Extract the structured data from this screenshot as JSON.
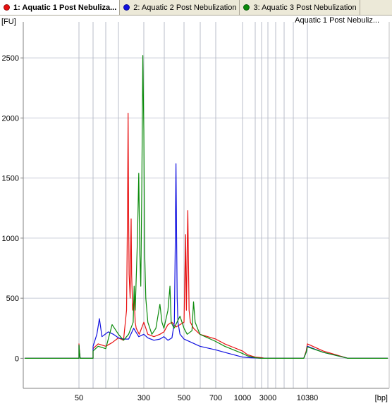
{
  "tabs": [
    {
      "label": "1: Aquatic 1 Post Nebuliza...",
      "color": "#e81010",
      "active": true
    },
    {
      "label": "2: Aquatic 2 Post Nebulization",
      "color": "#1010e0",
      "active": false
    },
    {
      "label": "3: Aquatic 3 Post Nebulization",
      "color": "#0a8a0a",
      "active": false
    }
  ],
  "chart_data": {
    "type": "line",
    "title": "",
    "sample_caption": "Aquatic 1 Post Nebuliz...",
    "ylabel": "[FU]",
    "xlabel": "[bp]",
    "ylim": [
      -250,
      2800
    ],
    "grid": true,
    "y_ticks": [
      0,
      500,
      1000,
      1500,
      2000,
      2500
    ],
    "x_tick_labels": [
      "50",
      "300",
      "500",
      "700",
      "1000",
      "3000",
      "10380"
    ],
    "ladder_bp": [
      35,
      50,
      100,
      150,
      200,
      300,
      400,
      500,
      600,
      700,
      1000,
      1500,
      2000,
      3000,
      4000,
      5000,
      7000,
      10380
    ],
    "series": [
      {
        "name": "1: Aquatic 1 Post Nebulization",
        "color": "#e81010",
        "points": [
          [
            20,
            0
          ],
          [
            47,
            0
          ],
          [
            49,
            70
          ],
          [
            50,
            120
          ],
          [
            51,
            70
          ],
          [
            53,
            0
          ],
          [
            85,
            0
          ],
          [
            100,
            80
          ],
          [
            120,
            120
          ],
          [
            150,
            100
          ],
          [
            175,
            130
          ],
          [
            200,
            170
          ],
          [
            220,
            150
          ],
          [
            232,
            400
          ],
          [
            236,
            1300
          ],
          [
            238,
            2040
          ],
          [
            240,
            1200
          ],
          [
            242,
            700
          ],
          [
            246,
            500
          ],
          [
            248,
            900
          ],
          [
            250,
            1160
          ],
          [
            252,
            700
          ],
          [
            256,
            400
          ],
          [
            262,
            500
          ],
          [
            266,
            300
          ],
          [
            270,
            250
          ],
          [
            282,
            200
          ],
          [
            300,
            300
          ],
          [
            320,
            200
          ],
          [
            350,
            180
          ],
          [
            380,
            200
          ],
          [
            400,
            220
          ],
          [
            420,
            280
          ],
          [
            440,
            300
          ],
          [
            460,
            260
          ],
          [
            480,
            280
          ],
          [
            500,
            300
          ],
          [
            505,
            650
          ],
          [
            510,
            1030
          ],
          [
            512,
            700
          ],
          [
            515,
            400
          ],
          [
            520,
            900
          ],
          [
            524,
            1230
          ],
          [
            528,
            800
          ],
          [
            532,
            400
          ],
          [
            540,
            300
          ],
          [
            560,
            250
          ],
          [
            600,
            200
          ],
          [
            700,
            160
          ],
          [
            800,
            120
          ],
          [
            900,
            90
          ],
          [
            1000,
            60
          ],
          [
            1200,
            30
          ],
          [
            1500,
            10
          ],
          [
            2000,
            5
          ],
          [
            2500,
            0
          ],
          [
            9500,
            0
          ],
          [
            10100,
            60
          ],
          [
            10380,
            120
          ],
          [
            10700,
            60
          ],
          [
            11200,
            0
          ],
          [
            12000,
            0
          ]
        ]
      },
      {
        "name": "2: Aquatic 2 Post Nebulization",
        "color": "#1010e0",
        "points": [
          [
            20,
            0
          ],
          [
            47,
            0
          ],
          [
            49,
            60
          ],
          [
            50,
            110
          ],
          [
            51,
            60
          ],
          [
            53,
            0
          ],
          [
            85,
            0
          ],
          [
            100,
            100
          ],
          [
            115,
            200
          ],
          [
            125,
            330
          ],
          [
            135,
            180
          ],
          [
            160,
            220
          ],
          [
            180,
            200
          ],
          [
            200,
            170
          ],
          [
            220,
            160
          ],
          [
            240,
            160
          ],
          [
            260,
            250
          ],
          [
            280,
            180
          ],
          [
            300,
            200
          ],
          [
            320,
            170
          ],
          [
            350,
            150
          ],
          [
            380,
            160
          ],
          [
            400,
            180
          ],
          [
            420,
            150
          ],
          [
            440,
            170
          ],
          [
            452,
            300
          ],
          [
            456,
            900
          ],
          [
            460,
            1620
          ],
          [
            463,
            1000
          ],
          [
            466,
            500
          ],
          [
            470,
            300
          ],
          [
            480,
            200
          ],
          [
            500,
            160
          ],
          [
            550,
            130
          ],
          [
            600,
            100
          ],
          [
            700,
            70
          ],
          [
            800,
            50
          ],
          [
            900,
            30
          ],
          [
            1000,
            10
          ],
          [
            1300,
            5
          ],
          [
            2000,
            0
          ],
          [
            9500,
            0
          ],
          [
            10100,
            50
          ],
          [
            10380,
            100
          ],
          [
            10700,
            50
          ],
          [
            11200,
            0
          ],
          [
            12000,
            0
          ]
        ]
      },
      {
        "name": "3: Aquatic 3 Post Nebulization",
        "color": "#0a8a0a",
        "points": [
          [
            20,
            0
          ],
          [
            47,
            0
          ],
          [
            49,
            60
          ],
          [
            50,
            110
          ],
          [
            51,
            60
          ],
          [
            53,
            0
          ],
          [
            85,
            0
          ],
          [
            100,
            60
          ],
          [
            120,
            100
          ],
          [
            150,
            80
          ],
          [
            175,
            280
          ],
          [
            200,
            200
          ],
          [
            220,
            150
          ],
          [
            240,
            200
          ],
          [
            258,
            300
          ],
          [
            262,
            600
          ],
          [
            266,
            400
          ],
          [
            275,
            1000
          ],
          [
            280,
            1540
          ],
          [
            284,
            900
          ],
          [
            288,
            600
          ],
          [
            292,
            1400
          ],
          [
            296,
            2520
          ],
          [
            300,
            1900
          ],
          [
            304,
            900
          ],
          [
            310,
            500
          ],
          [
            320,
            300
          ],
          [
            340,
            200
          ],
          [
            360,
            250
          ],
          [
            380,
            450
          ],
          [
            390,
            300
          ],
          [
            400,
            250
          ],
          [
            420,
            400
          ],
          [
            430,
            600
          ],
          [
            436,
            300
          ],
          [
            450,
            250
          ],
          [
            480,
            350
          ],
          [
            500,
            250
          ],
          [
            520,
            200
          ],
          [
            550,
            230
          ],
          [
            560,
            470
          ],
          [
            570,
            300
          ],
          [
            600,
            200
          ],
          [
            700,
            140
          ],
          [
            800,
            100
          ],
          [
            900,
            70
          ],
          [
            1000,
            40
          ],
          [
            1200,
            20
          ],
          [
            1500,
            5
          ],
          [
            2000,
            0
          ],
          [
            9500,
            0
          ],
          [
            10100,
            50
          ],
          [
            10380,
            95
          ],
          [
            10700,
            50
          ],
          [
            11200,
            0
          ],
          [
            12000,
            0
          ]
        ]
      }
    ]
  }
}
